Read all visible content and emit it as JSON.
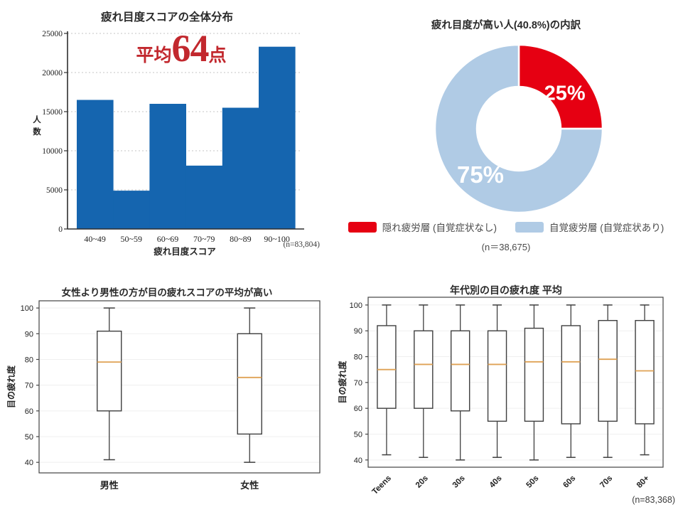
{
  "page": {
    "background": "#ffffff"
  },
  "chart_data": [
    {
      "id": "score-distribution-histogram",
      "type": "bar",
      "title": "疲れ目度スコアの全体分布",
      "categories": [
        "40~49",
        "50~59",
        "60~69",
        "70~79",
        "80~89",
        "90~100"
      ],
      "values": [
        16500,
        4900,
        16000,
        8100,
        15500,
        23300
      ],
      "xlabel": "疲れ目度スコア",
      "ylabel": "人数",
      "ylim": [
        0,
        25000
      ],
      "yticks": [
        0,
        5000,
        10000,
        15000,
        20000,
        25000
      ],
      "grid": "dotted-horizontal",
      "annotation": {
        "prefix": "平均",
        "value": "64",
        "suffix": "点",
        "color": "#c2282e"
      },
      "note": "(n=83,804)",
      "colors": {
        "bar": "#1565af",
        "spine": "#2e2e2e",
        "gridline": "#c4c4c4"
      }
    },
    {
      "id": "high-fatigue-breakdown-donut",
      "type": "pie",
      "title": "疲れ目度が高い人(40.8%)の内訳",
      "donut_hole_ratio": 0.5,
      "legend_position": "bottom",
      "slices": [
        {
          "label": "隠れ疲労層 (自覚症状なし)",
          "value": 25,
          "display": "25%",
          "color": "#e60012",
          "label_angle": 52,
          "label_radius": 82,
          "label_size": 29
        },
        {
          "label": "自覚疲労層 (自覚症状あり)",
          "value": 75,
          "display": "75%",
          "color": "#b0cbe5",
          "label_angle": 220,
          "label_radius": 84,
          "label_size": 33
        }
      ],
      "note": "(n＝38,675)"
    },
    {
      "id": "gender-boxplot",
      "type": "box",
      "title": "女性より男性の方が目の疲れスコアの平均が高い",
      "ylabel": "目の疲れ度",
      "ylim": [
        35.9,
        102.8
      ],
      "yticks": [
        40,
        50,
        60,
        70,
        80,
        90,
        100
      ],
      "categories": [
        "男性",
        "女性"
      ],
      "series": [
        {
          "category": "男性",
          "low": 41,
          "q1": 60,
          "median": 79,
          "q3": 91,
          "high": 100
        },
        {
          "category": "女性",
          "low": 40,
          "q1": 51,
          "median": 73,
          "q3": 90,
          "high": 100
        }
      ],
      "colors": {
        "box": "#3f3f3f",
        "median": "#dfa255",
        "gridline": "#efefef"
      }
    },
    {
      "id": "age-boxplot",
      "type": "box",
      "title": "年代別の目の疲れ度 平均",
      "ylabel": "目の疲れ度",
      "ylim": [
        37.2,
        103.0
      ],
      "yticks": [
        40,
        50,
        60,
        70,
        80,
        90,
        100
      ],
      "categories": [
        "Teens",
        "20s",
        "30s",
        "40s",
        "50s",
        "60s",
        "70s",
        "80+"
      ],
      "xtick_rotation": 45,
      "series": [
        {
          "category": "Teens",
          "low": 42,
          "q1": 60,
          "median": 75,
          "q3": 92,
          "high": 100
        },
        {
          "category": "20s",
          "low": 41,
          "q1": 60,
          "median": 77,
          "q3": 90,
          "high": 100
        },
        {
          "category": "30s",
          "low": 40,
          "q1": 59,
          "median": 77,
          "q3": 90,
          "high": 100
        },
        {
          "category": "40s",
          "low": 41,
          "q1": 55,
          "median": 77,
          "q3": 90,
          "high": 100
        },
        {
          "category": "50s",
          "low": 40,
          "q1": 55,
          "median": 78,
          "q3": 91,
          "high": 100
        },
        {
          "category": "60s",
          "low": 41,
          "q1": 54,
          "median": 78,
          "q3": 92,
          "high": 100
        },
        {
          "category": "70s",
          "low": 41,
          "q1": 55,
          "median": 79,
          "q3": 94,
          "high": 100
        },
        {
          "category": "80+",
          "low": 42,
          "q1": 54,
          "median": 74.5,
          "q3": 94,
          "high": 100
        }
      ],
      "note": "(n=83,368)",
      "colors": {
        "box": "#3f3f3f",
        "median": "#dfa255",
        "gridline": "#efefef"
      }
    }
  ]
}
